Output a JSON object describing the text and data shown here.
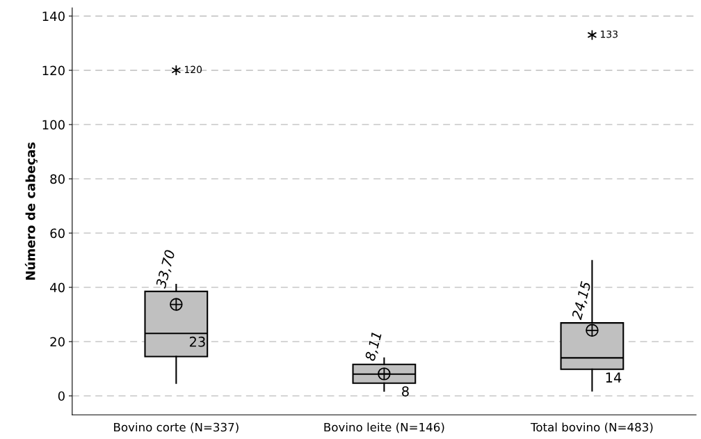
{
  "chart_data": {
    "type": "box",
    "ylabel": "Número de cabeças",
    "categories": [
      "Bovino corte (N=337)",
      "Bovino leite (N=146)",
      "Total bovino (N=483)"
    ],
    "boxes": [
      {
        "low": 4.7,
        "q1": 14.5,
        "median": 23,
        "q3": 38.5,
        "high": 41,
        "mean": 33.7,
        "outliers": [
          120
        ]
      },
      {
        "low": 1.8,
        "q1": 4.7,
        "median": 8,
        "q3": 11.6,
        "high": 13.9,
        "mean": 8.11
      },
      {
        "low": 1.9,
        "q1": 9.8,
        "median": 14,
        "q3": 26.9,
        "high": 49.8,
        "mean": 24.15,
        "outliers": [
          133
        ]
      }
    ],
    "color": "#c0c0c0",
    "ylim": [
      -7,
      143
    ],
    "yticks": [
      0,
      20,
      40,
      60,
      80,
      100,
      120,
      140
    ],
    "grid": "y",
    "annotations": [
      "33,70",
      {
        "text": "23",
        "x": "Bovino corte (N=337)",
        "y": 23
      },
      "120",
      "8,11",
      {
        "text": "8",
        "x": "Bovino leite (N=146)",
        "y": 8
      },
      "24,15",
      {
        "text": "14",
        "x": "Total bovino (N=483)",
        "y": 14
      },
      "133"
    ]
  }
}
